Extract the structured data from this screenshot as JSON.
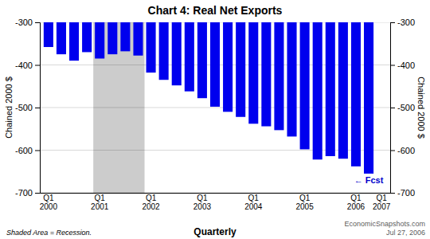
{
  "chart_data": {
    "type": "bar",
    "title": "Chart 4: Real Net Exports",
    "ylabel": "Chained 2000 $",
    "y2label": "Chained 2000 $",
    "categories": [
      "Q1\n2000",
      null,
      null,
      null,
      "Q1\n2001",
      null,
      null,
      null,
      "Q1\n2002",
      null,
      null,
      null,
      "Q1\n2003",
      null,
      null,
      null,
      "Q1\n2004",
      null,
      null,
      null,
      "Q1\n2005",
      null,
      null,
      null,
      "Q1\n2006",
      null,
      "Q1\n2007"
    ],
    "values": [
      -358,
      -375,
      -390,
      -370,
      -385,
      -375,
      -368,
      -378,
      -418,
      -435,
      -448,
      -462,
      -478,
      -498,
      -510,
      -522,
      -538,
      -544,
      -553,
      -568,
      -598,
      -622,
      -614,
      -620,
      -638,
      -655,
      null
    ],
    "color": "#0000EE",
    "ylim": [
      -700,
      -300
    ],
    "yticks": [
      -700,
      -600,
      -500,
      -400,
      -300
    ],
    "y2lim": [
      -700,
      -300
    ],
    "y2ticks": [
      -700,
      -600,
      -500,
      -400,
      -300
    ],
    "grid": true,
    "recession": {
      "start": 3.5,
      "end": 7.5,
      "color": "#CCCCCC"
    },
    "annotation": {
      "text": "← Fcst",
      "color": "#0000CC"
    },
    "footer_left": "Shaded Area = Recession.",
    "footer_center": "Quarterly",
    "footer_right": "EconomicSnapshots.com\nJul 27, 2006"
  }
}
